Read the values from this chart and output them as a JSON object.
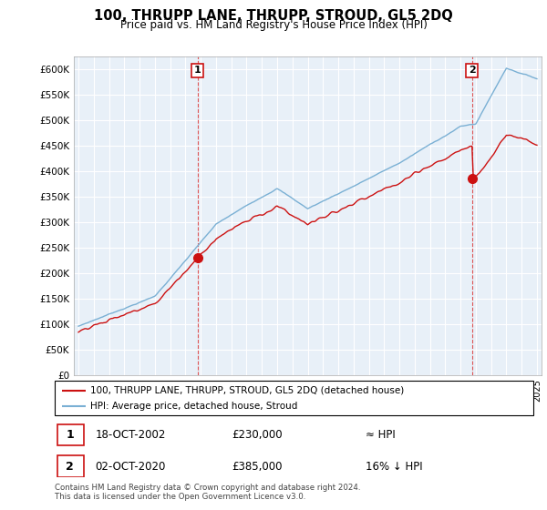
{
  "title": "100, THRUPP LANE, THRUPP, STROUD, GL5 2DQ",
  "subtitle": "Price paid vs. HM Land Registry's House Price Index (HPI)",
  "ytick_values": [
    0,
    50000,
    100000,
    150000,
    200000,
    250000,
    300000,
    350000,
    400000,
    450000,
    500000,
    550000,
    600000
  ],
  "ylim": [
    0,
    625000
  ],
  "xlim_start": 1994.7,
  "xlim_end": 2025.3,
  "sale1_x": 2002.8,
  "sale1_y": 230000,
  "sale2_x": 2020.75,
  "sale2_y": 385000,
  "hpi_color": "#7ab0d4",
  "price_color": "#cc1111",
  "dashed_color": "#dd5555",
  "box_color": "#cc1111",
  "plot_bg_color": "#e8f0f8",
  "grid_color": "#ffffff",
  "legend_line1": "100, THRUPP LANE, THRUPP, STROUD, GL5 2DQ (detached house)",
  "legend_line2": "HPI: Average price, detached house, Stroud",
  "footnote_line1": "Contains HM Land Registry data © Crown copyright and database right 2024.",
  "footnote_line2": "This data is licensed under the Open Government Licence v3.0.",
  "table_row1_date": "18-OCT-2002",
  "table_row1_price": "£230,000",
  "table_row1_hpi": "≈ HPI",
  "table_row2_date": "02-OCT-2020",
  "table_row2_price": "£385,000",
  "table_row2_hpi": "16% ↓ HPI",
  "background_color": "#ffffff"
}
